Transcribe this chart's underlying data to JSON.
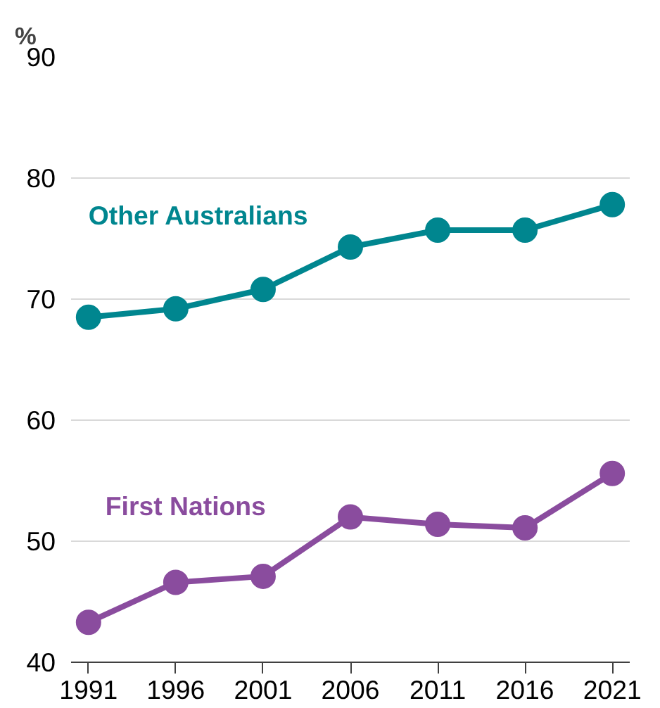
{
  "chart_data": {
    "type": "line",
    "ylabel": "%",
    "x": [
      1991,
      1996,
      2001,
      2006,
      2011,
      2016,
      2021
    ],
    "series": [
      {
        "name": "Other Australians",
        "color": "#00868f",
        "values": [
          68.5,
          69.2,
          70.8,
          74.3,
          75.7,
          75.7,
          77.8
        ]
      },
      {
        "name": "First Nations",
        "color": "#8a4c9e",
        "values": [
          43.3,
          46.6,
          47.1,
          52.0,
          51.4,
          51.1,
          55.6
        ]
      }
    ],
    "xlim": [
      1990,
      2022
    ],
    "xticks": [
      1991,
      1996,
      2001,
      2006,
      2011,
      2016,
      2021
    ],
    "ylim": [
      40,
      90
    ],
    "yticks": [
      40,
      50,
      60,
      70,
      80,
      90
    ],
    "grid": "y",
    "marker": "circle",
    "line_style": "solid"
  }
}
